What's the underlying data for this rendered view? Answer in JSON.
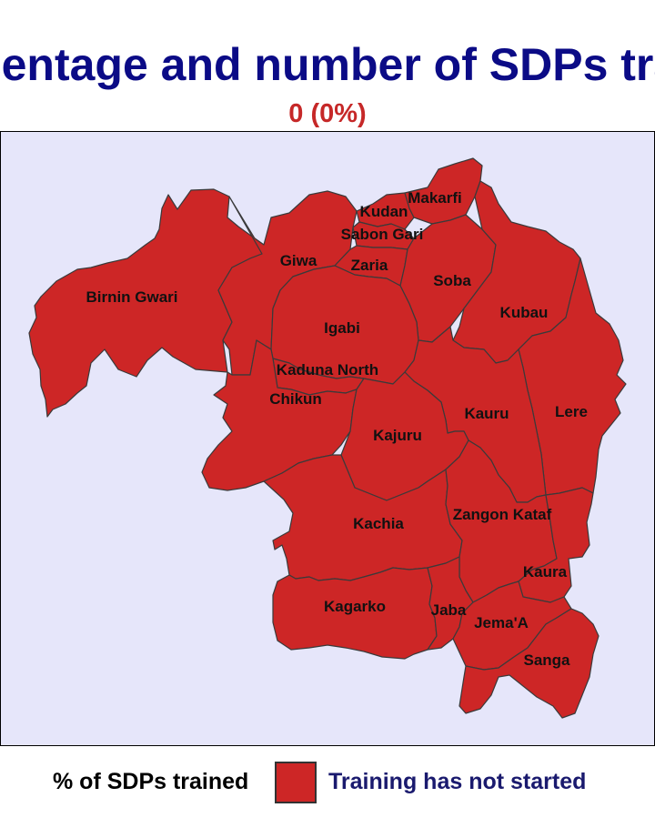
{
  "title": "centage and number of SDPs tra",
  "subtitle": "0 (0%)",
  "colors": {
    "title": "#0b0b86",
    "subtitle": "#c62828",
    "map_background": "#e6e6fa",
    "region_fill": "#cd2626",
    "region_border": "#3a3a3a",
    "legend_label": "#1a1a6e"
  },
  "regions": [
    "Birnin Gwari",
    "Giwa",
    "Kudan",
    "Makarfi",
    "Sabon Gari",
    "Zaria",
    "Soba",
    "Kubau",
    "Igabi",
    "Kaduna North",
    "Chikun",
    "Lere",
    "Kauru",
    "Kajuru",
    "Kachia",
    "Zangon Kataf",
    "Kaura",
    "Kagarko",
    "Jaba",
    "Jema'A",
    "Sanga"
  ],
  "legend": {
    "title": "% of SDPs trained",
    "items": [
      {
        "label": "Training has not started",
        "color": "#cd2626"
      }
    ]
  }
}
